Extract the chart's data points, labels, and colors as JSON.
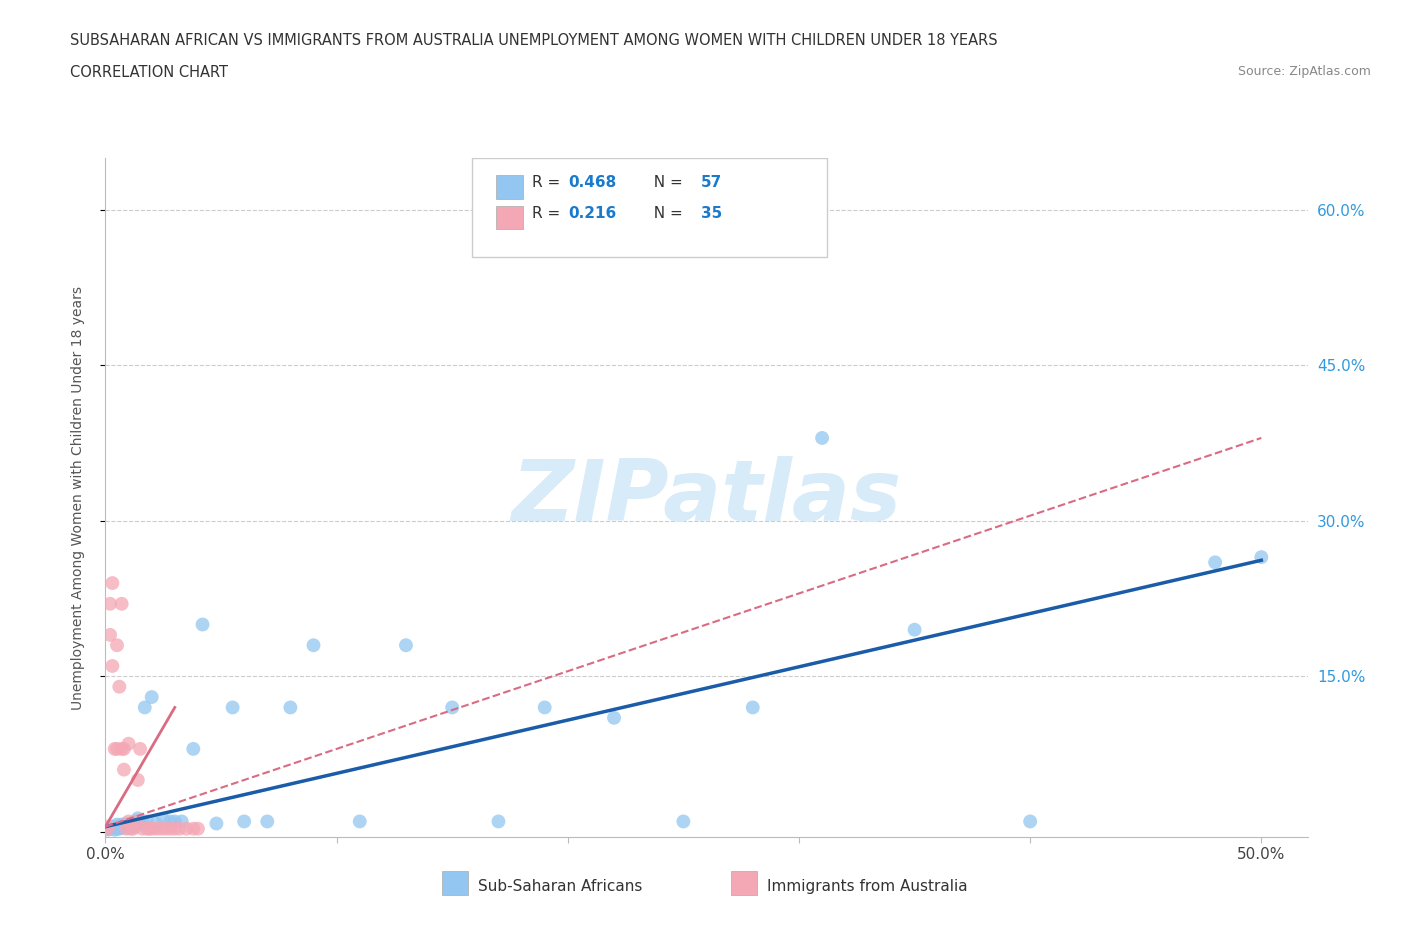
{
  "title_line1": "SUBSAHARAN AFRICAN VS IMMIGRANTS FROM AUSTRALIA UNEMPLOYMENT AMONG WOMEN WITH CHILDREN UNDER 18 YEARS",
  "title_line2": "CORRELATION CHART",
  "source": "Source: ZipAtlas.com",
  "ylabel": "Unemployment Among Women with Children Under 18 years",
  "xlim": [
    0.0,
    0.52
  ],
  "ylim": [
    -0.005,
    0.65
  ],
  "r_african": 0.468,
  "n_african": 57,
  "r_australia": 0.216,
  "n_australia": 35,
  "color_african": "#93C6F0",
  "color_australia": "#F4A7B5",
  "line_color_african": "#1A5CA8",
  "line_color_australia": "#D96B82",
  "background_color": "#FFFFFF",
  "watermark": "ZIPatlas",
  "watermark_color": "#D8EBF8",
  "legend_label_african": "Sub-Saharan Africans",
  "legend_label_australia": "Immigrants from Australia",
  "african_x": [
    0.001,
    0.002,
    0.003,
    0.003,
    0.004,
    0.004,
    0.005,
    0.005,
    0.005,
    0.006,
    0.006,
    0.007,
    0.007,
    0.008,
    0.008,
    0.009,
    0.009,
    0.01,
    0.01,
    0.011,
    0.011,
    0.012,
    0.012,
    0.013,
    0.013,
    0.014,
    0.015,
    0.016,
    0.017,
    0.018,
    0.02,
    0.022,
    0.025,
    0.028,
    0.03,
    0.033,
    0.038,
    0.042,
    0.048,
    0.055,
    0.06,
    0.07,
    0.08,
    0.09,
    0.11,
    0.13,
    0.15,
    0.17,
    0.19,
    0.22,
    0.25,
    0.28,
    0.31,
    0.35,
    0.4,
    0.48,
    0.5
  ],
  "african_y": [
    0.002,
    0.003,
    0.004,
    0.005,
    0.002,
    0.004,
    0.003,
    0.005,
    0.007,
    0.003,
    0.006,
    0.004,
    0.007,
    0.004,
    0.006,
    0.005,
    0.008,
    0.004,
    0.007,
    0.005,
    0.008,
    0.006,
    0.009,
    0.005,
    0.01,
    0.013,
    0.008,
    0.01,
    0.12,
    0.01,
    0.13,
    0.008,
    0.012,
    0.01,
    0.01,
    0.01,
    0.08,
    0.2,
    0.008,
    0.12,
    0.01,
    0.01,
    0.12,
    0.18,
    0.01,
    0.18,
    0.12,
    0.01,
    0.12,
    0.11,
    0.01,
    0.12,
    0.38,
    0.195,
    0.01,
    0.26,
    0.265
  ],
  "australia_x": [
    0.001,
    0.001,
    0.002,
    0.002,
    0.003,
    0.003,
    0.004,
    0.005,
    0.005,
    0.006,
    0.007,
    0.007,
    0.008,
    0.008,
    0.009,
    0.01,
    0.01,
    0.011,
    0.012,
    0.013,
    0.014,
    0.015,
    0.016,
    0.018,
    0.019,
    0.02,
    0.022,
    0.024,
    0.026,
    0.028,
    0.03,
    0.032,
    0.035,
    0.038,
    0.04
  ],
  "australia_y": [
    0.003,
    0.005,
    0.19,
    0.22,
    0.16,
    0.24,
    0.08,
    0.18,
    0.08,
    0.14,
    0.08,
    0.22,
    0.08,
    0.06,
    0.003,
    0.085,
    0.01,
    0.003,
    0.003,
    0.01,
    0.05,
    0.08,
    0.003,
    0.003,
    0.003,
    0.003,
    0.003,
    0.003,
    0.003,
    0.003,
    0.003,
    0.003,
    0.003,
    0.003,
    0.003
  ],
  "ytick_positions": [
    0.0,
    0.15,
    0.3,
    0.45,
    0.6
  ],
  "ytick_labels": [
    "",
    "15.0%",
    "30.0%",
    "45.0%",
    "60.0%"
  ],
  "xtick_positions": [
    0.0,
    0.1,
    0.2,
    0.3,
    0.4,
    0.5
  ],
  "xtick_labels": [
    "0.0%",
    "",
    "",
    "",
    "",
    "50.0%"
  ]
}
